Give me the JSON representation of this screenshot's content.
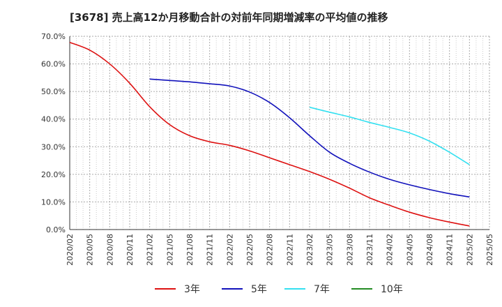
{
  "title": "[3678]  売上高12か月移動合計の対前年同期増減率の平均値の推移",
  "chart_data": {
    "type": "line",
    "title": "[3678]  売上高12か月移動合計の対前年同期増減率の平均値の推移",
    "xlabel": "",
    "ylabel": "",
    "ylim": [
      0,
      70
    ],
    "yticks": [
      "0.0%",
      "10.0%",
      "20.0%",
      "30.0%",
      "40.0%",
      "50.0%",
      "60.0%",
      "70.0%"
    ],
    "x_ticks": [
      "2020/02",
      "2020/05",
      "2020/08",
      "2020/11",
      "2021/02",
      "2021/05",
      "2021/08",
      "2021/11",
      "2022/02",
      "2022/05",
      "2022/08",
      "2022/11",
      "2023/02",
      "2023/05",
      "2023/08",
      "2023/11",
      "2024/02",
      "2024/05",
      "2024/08",
      "2024/11",
      "2025/02",
      "2025/05"
    ],
    "grid": true,
    "legend_position": "bottom",
    "series": [
      {
        "name": "3年",
        "color": "#dd1111",
        "x": [
          "2020/02",
          "2020/05",
          "2020/08",
          "2020/11",
          "2021/02",
          "2021/05",
          "2021/08",
          "2021/11",
          "2022/02",
          "2022/05",
          "2022/08",
          "2022/11",
          "2023/02",
          "2023/05",
          "2023/08",
          "2023/11",
          "2024/02",
          "2024/05",
          "2024/08",
          "2024/11",
          "2025/02"
        ],
        "values": [
          67.8,
          65.0,
          60.0,
          53.0,
          44.5,
          38.0,
          34.0,
          31.8,
          30.5,
          28.5,
          26.0,
          23.5,
          21.0,
          18.2,
          15.0,
          11.5,
          8.8,
          6.3,
          4.3,
          2.7,
          1.3
        ]
      },
      {
        "name": "5年",
        "color": "#1111bb",
        "x": [
          "2021/02",
          "2021/05",
          "2021/08",
          "2021/11",
          "2022/02",
          "2022/05",
          "2022/08",
          "2022/11",
          "2023/02",
          "2023/05",
          "2023/08",
          "2023/11",
          "2024/02",
          "2024/05",
          "2024/08",
          "2024/11",
          "2025/02"
        ],
        "values": [
          54.5,
          54.0,
          53.5,
          52.8,
          52.0,
          49.8,
          46.0,
          40.5,
          34.0,
          28.0,
          24.0,
          20.8,
          18.2,
          16.2,
          14.5,
          13.0,
          11.8
        ]
      },
      {
        "name": "7年",
        "color": "#33e0f0",
        "x": [
          "2023/02",
          "2023/05",
          "2023/08",
          "2023/11",
          "2024/02",
          "2024/05",
          "2024/08",
          "2024/11",
          "2025/02"
        ],
        "values": [
          44.3,
          42.5,
          40.8,
          38.8,
          37.0,
          35.0,
          32.0,
          28.0,
          23.5
        ]
      },
      {
        "name": "10年",
        "color": "#228b22",
        "x": [],
        "values": []
      }
    ]
  }
}
